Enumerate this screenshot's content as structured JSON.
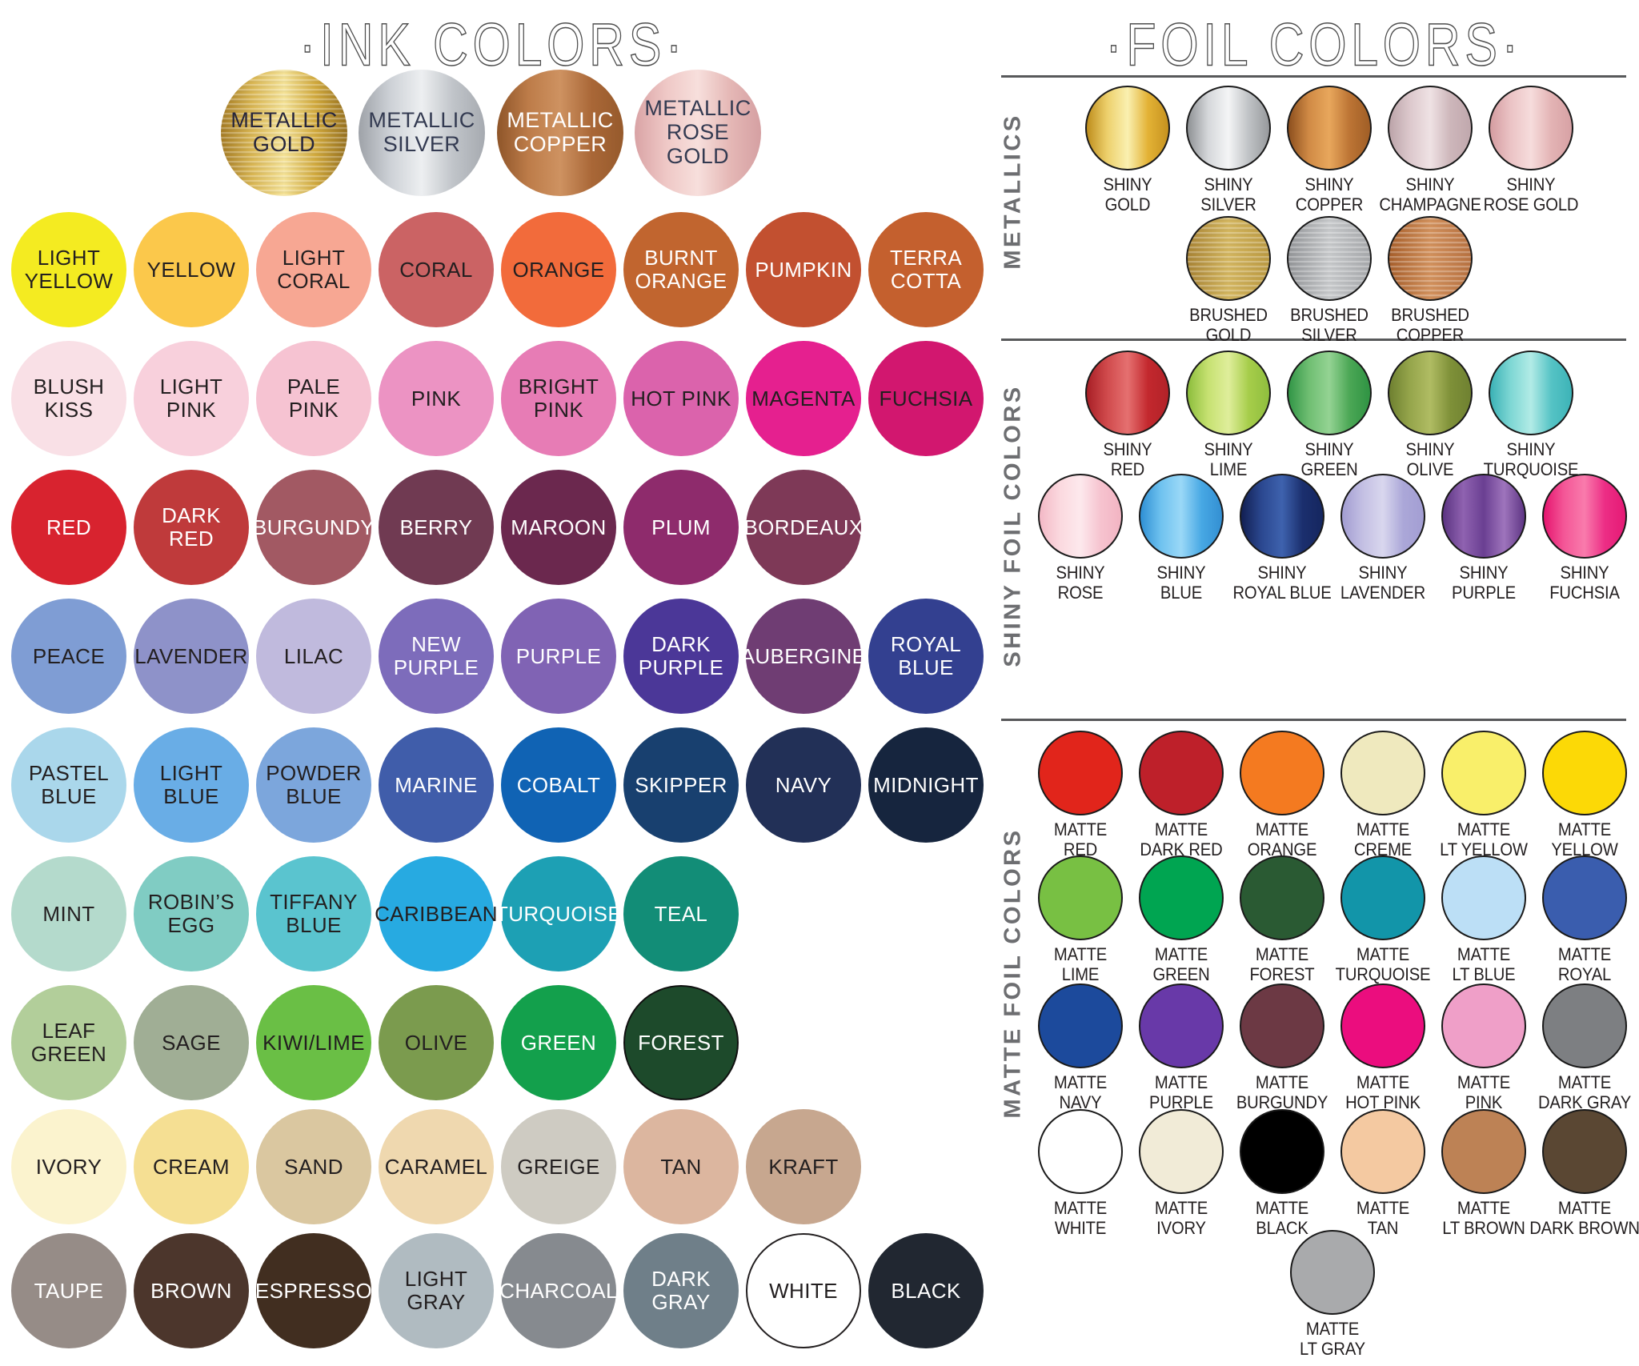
{
  "theme": {
    "background": "#FFFFFF",
    "title_color": "#4D4D4D",
    "divider_color": "#58595B",
    "section_label_color": "#6D6E71",
    "label_color": "#231F20"
  },
  "ink": {
    "title": "·INK COLORS·",
    "metallics": [
      {
        "label": "METALLIC\nGOLD",
        "colors": [
          "#A47A22",
          "#D9B653",
          "#F4E296",
          "#D1A93C",
          "#96701E"
        ],
        "text": "#26253C",
        "finish": "brushed"
      },
      {
        "label": "METALLIC\nSILVER",
        "colors": [
          "#9EA2A8",
          "#CDD1D6",
          "#EDEFF1",
          "#C0C4C9",
          "#A6AAB0"
        ],
        "text": "#333A51"
      },
      {
        "label": "METALLIC\nCOPPER",
        "colors": [
          "#8E5529",
          "#BD7C49",
          "#CE9261",
          "#A96737",
          "#965A2C"
        ],
        "text": "#FFFFFF"
      },
      {
        "label": "METALLIC\nROSE\nGOLD",
        "colors": [
          "#D9A3A5",
          "#EFC8C6",
          "#F7DFDC",
          "#E5B8B6",
          "#D5A0A2"
        ],
        "text": "#333A51"
      }
    ],
    "rows": [
      [
        {
          "label": "LIGHT\nYELLOW",
          "color": "#F4EB21",
          "text": "#231F20"
        },
        {
          "label": "YELLOW",
          "color": "#FBC84B",
          "text": "#231F20"
        },
        {
          "label": "LIGHT\nCORAL",
          "color": "#F7A793",
          "text": "#231F20"
        },
        {
          "label": "CORAL",
          "color": "#CB6364",
          "text": "#231F20"
        },
        {
          "label": "ORANGE",
          "color": "#F26B3B",
          "text": "#231F20"
        },
        {
          "label": "BURNT\nORANGE",
          "color": "#C1652F",
          "text": "#FFFFFF"
        },
        {
          "label": "PUMPKIN",
          "color": "#C25030",
          "text": "#FFFFFF"
        },
        {
          "label": "TERRA\nCOTTA",
          "color": "#C4602E",
          "text": "#FFFFFF"
        }
      ],
      [
        {
          "label": "BLUSH\nKISS",
          "color": "#F9E0E6",
          "text": "#231F20"
        },
        {
          "label": "LIGHT\nPINK",
          "color": "#F8D0DC",
          "text": "#231F20"
        },
        {
          "label": "PALE\nPINK",
          "color": "#F6C3D2",
          "text": "#231F20"
        },
        {
          "label": "PINK",
          "color": "#EC93C3",
          "text": "#231F20"
        },
        {
          "label": "BRIGHT\nPINK",
          "color": "#E77CB5",
          "text": "#231F20"
        },
        {
          "label": "HOT PINK",
          "color": "#DB63AC",
          "text": "#231F20"
        },
        {
          "label": "MAGENTA",
          "color": "#E5208F",
          "text": "#231F20"
        },
        {
          "label": "FUCHSIA",
          "color": "#D2176F",
          "text": "#231F20"
        }
      ],
      [
        {
          "label": "RED",
          "color": "#D8232F",
          "text": "#FFFFFF"
        },
        {
          "label": "DARK\nRED",
          "color": "#BF3A3B",
          "text": "#FFFFFF"
        },
        {
          "label": "BURGUNDY",
          "color": "#A25963",
          "text": "#FFFFFF"
        },
        {
          "label": "BERRY",
          "color": "#703A52",
          "text": "#FFFFFF"
        },
        {
          "label": "MAROON",
          "color": "#6B284E",
          "text": "#FFFFFF"
        },
        {
          "label": "PLUM",
          "color": "#8E2B6C",
          "text": "#FFFFFF"
        },
        {
          "label": "BORDEAUX",
          "color": "#7E3957",
          "text": "#FFFFFF"
        }
      ],
      [
        {
          "label": "PEACE",
          "color": "#7F9DD4",
          "text": "#231F20"
        },
        {
          "label": "LAVENDER",
          "color": "#8E92C9",
          "text": "#231F20"
        },
        {
          "label": "LILAC",
          "color": "#C0BADD",
          "text": "#231F20"
        },
        {
          "label": "NEW\nPURPLE",
          "color": "#7D6CBB",
          "text": "#FFFFFF"
        },
        {
          "label": "PURPLE",
          "color": "#8063B4",
          "text": "#FFFFFF"
        },
        {
          "label": "DARK\nPURPLE",
          "color": "#4B3798",
          "text": "#FFFFFF"
        },
        {
          "label": "AUBERGINE",
          "color": "#6F3D73",
          "text": "#FFFFFF"
        },
        {
          "label": "ROYAL\nBLUE",
          "color": "#334090",
          "text": "#FFFFFF"
        }
      ],
      [
        {
          "label": "PASTEL\nBLUE",
          "color": "#AAD7EB",
          "text": "#231F20"
        },
        {
          "label": "LIGHT\nBLUE",
          "color": "#69ADE6",
          "text": "#231F20"
        },
        {
          "label": "POWDER\nBLUE",
          "color": "#7CA6DC",
          "text": "#231F20"
        },
        {
          "label": "MARINE",
          "color": "#405DAA",
          "text": "#FFFFFF"
        },
        {
          "label": "COBALT",
          "color": "#1063B4",
          "text": "#FFFFFF"
        },
        {
          "label": "SKIPPER",
          "color": "#18406F",
          "text": "#FFFFFF"
        },
        {
          "label": "NAVY",
          "color": "#223057",
          "text": "#FFFFFF"
        },
        {
          "label": "MIDNIGHT",
          "color": "#16253E",
          "text": "#FFFFFF"
        }
      ],
      [
        {
          "label": "MINT",
          "color": "#B4DACC",
          "text": "#231F20"
        },
        {
          "label": "ROBIN’S\nEGG",
          "color": "#80CCC3",
          "text": "#231F20"
        },
        {
          "label": "TIFFANY\nBLUE",
          "color": "#5AC4CF",
          "text": "#231F20"
        },
        {
          "label": "CARIBBEAN",
          "color": "#27AAE1",
          "text": "#231F20"
        },
        {
          "label": "TURQUOISE",
          "color": "#1DA0B4",
          "text": "#FFFFFF"
        },
        {
          "label": "TEAL",
          "color": "#128D77",
          "text": "#FFFFFF"
        }
      ],
      [
        {
          "label": "LEAF\nGREEN",
          "color": "#B2CE9A",
          "text": "#231F20"
        },
        {
          "label": "SAGE",
          "color": "#A0AE95",
          "text": "#231F20"
        },
        {
          "label": "KIWI/LIME",
          "color": "#6ABF45",
          "text": "#231F20"
        },
        {
          "label": "OLIVE",
          "color": "#7B9B4E",
          "text": "#231F20"
        },
        {
          "label": "GREEN",
          "color": "#13A04C",
          "text": "#FFFFFF"
        },
        {
          "label": "FOREST",
          "color": "#1D4A2B",
          "text": "#FFFFFF",
          "border": "#101010"
        }
      ],
      [
        {
          "label": "IVORY",
          "color": "#FBF3CE",
          "text": "#231F20"
        },
        {
          "label": "CREAM",
          "color": "#F5DF93",
          "text": "#231F20"
        },
        {
          "label": "SAND",
          "color": "#DAC7A0",
          "text": "#231F20"
        },
        {
          "label": "CARAMEL",
          "color": "#EFD8AF",
          "text": "#231F20"
        },
        {
          "label": "GREIGE",
          "color": "#CECBC2",
          "text": "#231F20"
        },
        {
          "label": "TAN",
          "color": "#DCB69F",
          "text": "#231F20"
        },
        {
          "label": "KRAFT",
          "color": "#C7A78F",
          "text": "#231F20"
        }
      ],
      [
        {
          "label": "TAUPE",
          "color": "#968C87",
          "text": "#FFFFFF"
        },
        {
          "label": "BROWN",
          "color": "#4C362C",
          "text": "#FFFFFF"
        },
        {
          "label": "ESPRESSO",
          "color": "#412E20",
          "text": "#FFFFFF"
        },
        {
          "label": "LIGHT\nGRAY",
          "color": "#B0BBC1",
          "text": "#231F20"
        },
        {
          "label": "CHARCOAL",
          "color": "#868A8F",
          "text": "#FFFFFF"
        },
        {
          "label": "DARK\nGRAY",
          "color": "#6F7F89",
          "text": "#FFFFFF"
        },
        {
          "label": "WHITE",
          "color": "#FFFFFF",
          "text": "#231F20",
          "border": "#231F20"
        },
        {
          "label": "BLACK",
          "color": "#212731",
          "text": "#FFFFFF"
        }
      ]
    ]
  },
  "foil": {
    "title": "·FOIL COLORS·",
    "sections": [
      {
        "label": "METALLICS",
        "rows": [
          [
            {
              "label": "SHINY\nGOLD",
              "colors": [
                "#BE8D1C",
                "#EDD06C",
                "#FAF0B0",
                "#E3B235",
                "#C6921F"
              ]
            },
            {
              "label": "SHINY\nSILVER",
              "colors": [
                "#8E9194",
                "#D5D7DA",
                "#F4F5F6",
                "#BFC2C5",
                "#97999C"
              ]
            },
            {
              "label": "SHINY\nCOPPER",
              "colors": [
                "#8C4F1E",
                "#D08A45",
                "#E8A75C",
                "#BC7434",
                "#A05E26"
              ]
            },
            {
              "label": "SHINY\nCHAMPAGNE",
              "colors": [
                "#BBA4A9",
                "#DCC8CC",
                "#EFE2E4",
                "#CDB6BA",
                "#C0A8AD"
              ]
            },
            {
              "label": "SHINY\nROSE GOLD",
              "colors": [
                "#D49CA0",
                "#EBC3C5",
                "#F6DCDC",
                "#E3B3B4",
                "#D7A1A4"
              ]
            }
          ],
          [
            {
              "label": "BRUSHED\nGOLD",
              "colors": [
                "#A98434",
                "#D4B65F",
                "#BC9A41"
              ],
              "finish": "brushed"
            },
            {
              "label": "BRUSHED\nSILVER",
              "colors": [
                "#939598",
                "#C8CACC",
                "#A7A9AC"
              ],
              "finish": "brushed"
            },
            {
              "label": "BRUSHED\nCOPPER",
              "colors": [
                "#A85F2B",
                "#D3915C",
                "#B87140"
              ],
              "finish": "brushed"
            }
          ]
        ]
      },
      {
        "label": "SHINY FOIL COLORS",
        "rows": [
          [
            {
              "label": "SHINY\nRED",
              "colors": [
                "#A81F26",
                "#D04A4C",
                "#E57070",
                "#C3282E",
                "#B22228"
              ]
            },
            {
              "label": "SHINY\nLIME",
              "colors": [
                "#8CBD3C",
                "#C6E171",
                "#DFEE9B",
                "#A6CD4A",
                "#8FBE3E"
              ]
            },
            {
              "label": "SHINY\nGREEN",
              "colors": [
                "#319546",
                "#6FBE72",
                "#94D393",
                "#4BA755",
                "#2F9343"
              ]
            },
            {
              "label": "SHINY\nOLIVE",
              "colors": [
                "#6E8030",
                "#95A54B",
                "#B0BC63",
                "#7E9038",
                "#6F8131"
              ]
            },
            {
              "label": "SHINY\nTURQUOISE",
              "colors": [
                "#3AB1B5",
                "#7ED7D4",
                "#B2EBE6",
                "#55C3C5",
                "#3DB3B7"
              ]
            }
          ],
          [
            {
              "label": "SHINY\nROSE",
              "colors": [
                "#F3B8C6",
                "#FBD9DF",
                "#FDE9ED",
                "#F6C3CF",
                "#F2B4C2"
              ]
            },
            {
              "label": "SHINY\nBLUE",
              "colors": [
                "#2E8FD4",
                "#6FC2EF",
                "#9AD8F7",
                "#47A8E4",
                "#338FD2"
              ]
            },
            {
              "label": "SHINY\nROYAL BLUE",
              "colors": [
                "#121F52",
                "#2B4890",
                "#3E62AE",
                "#1B2F6E",
                "#15265F"
              ]
            },
            {
              "label": "SHINY\nLAVENDER",
              "colors": [
                "#A19CD1",
                "#C3BFE3",
                "#D9D7EE",
                "#ABA7D8",
                "#A39ED3"
              ]
            },
            {
              "label": "SHINY\nPURPLE",
              "colors": [
                "#5B3381",
                "#8F62B0",
                "#6A3F92",
                "#9E74BC",
                "#5E3584"
              ]
            },
            {
              "label": "SHINY\nFUCHSIA",
              "colors": [
                "#E5146F",
                "#F45797",
                "#F97BAC",
                "#EC2D85",
                "#E51A75"
              ]
            }
          ]
        ]
      },
      {
        "label": "MATTE FOIL COLORS",
        "rows": [
          [
            {
              "label": "MATTE\nRED",
              "colors": [
                "#E1251B"
              ]
            },
            {
              "label": "MATTE\nDARK RED",
              "colors": [
                "#BE202A"
              ]
            },
            {
              "label": "MATTE\nORANGE",
              "colors": [
                "#F47A20"
              ]
            },
            {
              "label": "MATTE\nCREME",
              "colors": [
                "#EFE9BE"
              ]
            },
            {
              "label": "MATTE\nLT YELLOW",
              "colors": [
                "#F9EF6A"
              ]
            },
            {
              "label": "MATTE\nYELLOW",
              "colors": [
                "#FCD906"
              ]
            }
          ],
          [
            {
              "label": "MATTE\nLIME",
              "colors": [
                "#78C043"
              ]
            },
            {
              "label": "MATTE\nGREEN",
              "colors": [
                "#00A551"
              ]
            },
            {
              "label": "MATTE\nFOREST",
              "colors": [
                "#2A5A33"
              ]
            },
            {
              "label": "MATTE\nTURQUOISE",
              "colors": [
                "#1295A9"
              ]
            },
            {
              "label": "MATTE\nLT BLUE",
              "colors": [
                "#BCDFF6"
              ]
            },
            {
              "label": "MATTE\nROYAL",
              "colors": [
                "#3A5DAE"
              ]
            }
          ],
          [
            {
              "label": "MATTE\nNAVY",
              "colors": [
                "#1C4A9C"
              ]
            },
            {
              "label": "MATTE\nPURPLE",
              "colors": [
                "#6839A8"
              ]
            },
            {
              "label": "MATTE\nBURGUNDY",
              "colors": [
                "#6C3944"
              ]
            },
            {
              "label": "MATTE\nHOT PINK",
              "colors": [
                "#EB0D7E"
              ]
            },
            {
              "label": "MATTE\nPINK",
              "colors": [
                "#EF9FC8"
              ]
            },
            {
              "label": "MATTE\nDARK GRAY",
              "colors": [
                "#7D7F82"
              ]
            }
          ],
          [
            {
              "label": "MATTE\nWHITE",
              "colors": [
                "#FFFFFF"
              ]
            },
            {
              "label": "MATTE\nIVORY",
              "colors": [
                "#F1EBD7"
              ]
            },
            {
              "label": "MATTE\nBLACK",
              "colors": [
                "#000000"
              ]
            },
            {
              "label": "MATTE\nTAN",
              "colors": [
                "#F4C9A1"
              ]
            },
            {
              "label": "MATTE\nLT BROWN",
              "colors": [
                "#BD8255"
              ]
            },
            {
              "label": "MATTE\nDARK BROWN",
              "colors": [
                "#5A4733"
              ]
            }
          ],
          [
            {
              "label": "MATTE\nLT GRAY",
              "colors": [
                "#A9AAAC"
              ]
            }
          ]
        ]
      }
    ]
  }
}
